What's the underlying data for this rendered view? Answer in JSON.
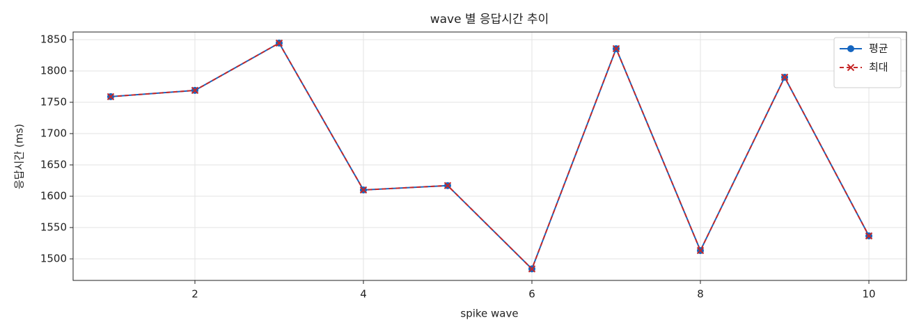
{
  "chart_data": {
    "type": "line",
    "title": "wave 별 응답시간 추이",
    "x_label": "spike wave",
    "y_label": "응답시간 (ms)",
    "x": [
      1,
      2,
      3,
      4,
      5,
      6,
      7,
      8,
      9,
      10
    ],
    "series": [
      {
        "name": "평균",
        "color": "#1565c0",
        "marker": "circle",
        "dash": false,
        "values": [
          1759,
          1769,
          1844.5,
          1610,
          1617,
          1484,
          1835.6,
          1513.3,
          1790,
          1536.7
        ]
      },
      {
        "name": "최대",
        "color": "#c62828",
        "marker": "x",
        "dash": true,
        "values": [
          1759,
          1769,
          1844.5,
          1610,
          1617,
          1484,
          1835.6,
          1513.3,
          1790,
          1536.7
        ]
      }
    ],
    "xlim": [
      0.554,
      10.446
    ],
    "xticks": [
      2,
      4,
      6,
      8,
      10
    ],
    "ylim": [
      1465.6,
      1862.2
    ],
    "yticks": [
      1500,
      1550,
      1600,
      1650,
      1700,
      1750,
      1800,
      1850
    ],
    "grid": true,
    "legend": "upper right"
  }
}
